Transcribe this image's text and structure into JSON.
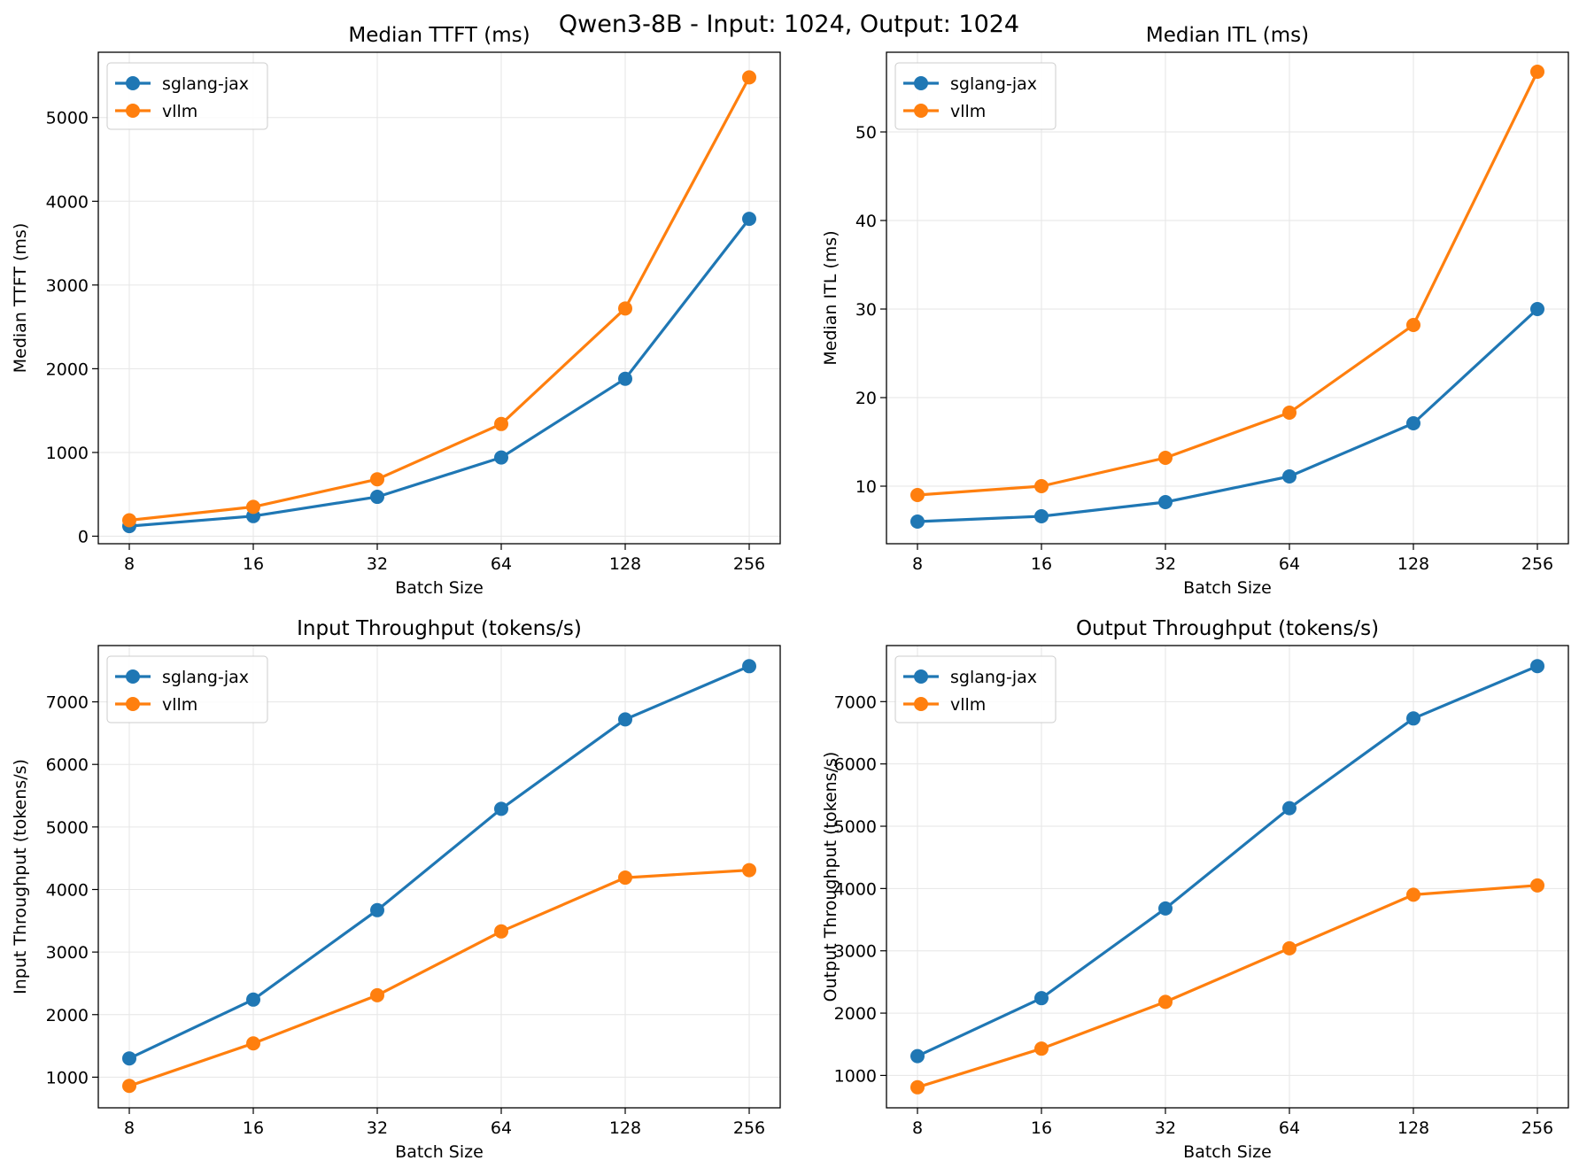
{
  "figure_title": "Qwen3-8B - Input: 1024, Output: 1024",
  "colors": {
    "sglang-jax": "#1f77b4",
    "vllm": "#ff7f0e",
    "grid": "#e6e6e6"
  },
  "chart_data": [
    {
      "type": "line",
      "title": "Median TTFT (ms)",
      "xlabel": "Batch Size",
      "ylabel": "Median TTFT (ms)",
      "x_scale": "log2",
      "x": [
        8,
        16,
        32,
        64,
        128,
        256
      ],
      "xticks": [
        "8",
        "16",
        "32",
        "64",
        "128",
        "256"
      ],
      "ylim": [
        -90,
        5780
      ],
      "yticks": [
        0,
        1000,
        2000,
        3000,
        4000,
        5000
      ],
      "grid": true,
      "legend": "top-left",
      "series": [
        {
          "name": "sglang-jax",
          "values": [
            120,
            240,
            470,
            940,
            1880,
            3790
          ]
        },
        {
          "name": "vllm",
          "values": [
            190,
            350,
            680,
            1340,
            2720,
            5480
          ]
        }
      ]
    },
    {
      "type": "line",
      "title": "Median ITL (ms)",
      "xlabel": "Batch Size",
      "ylabel": "Median ITL (ms)",
      "x_scale": "log2",
      "x": [
        8,
        16,
        32,
        64,
        128,
        256
      ],
      "xticks": [
        "8",
        "16",
        "32",
        "64",
        "128",
        "256"
      ],
      "ylim": [
        3.5,
        59
      ],
      "yticks": [
        10,
        20,
        30,
        40,
        50
      ],
      "grid": true,
      "legend": "top-left",
      "series": [
        {
          "name": "sglang-jax",
          "values": [
            6.0,
            6.6,
            8.2,
            11.1,
            17.1,
            30.0
          ]
        },
        {
          "name": "vllm",
          "values": [
            9.0,
            10.0,
            13.2,
            18.3,
            28.2,
            56.8
          ]
        }
      ]
    },
    {
      "type": "line",
      "title": "Input Throughput (tokens/s)",
      "xlabel": "Batch Size",
      "ylabel": "Input Throughput (tokens/s)",
      "x_scale": "log2",
      "x": [
        8,
        16,
        32,
        64,
        128,
        256
      ],
      "xticks": [
        "8",
        "16",
        "32",
        "64",
        "128",
        "256"
      ],
      "ylim": [
        510,
        7900
      ],
      "yticks": [
        1000,
        2000,
        3000,
        4000,
        5000,
        6000,
        7000
      ],
      "grid": true,
      "legend": "top-left",
      "series": [
        {
          "name": "sglang-jax",
          "values": [
            1300,
            2240,
            3670,
            5290,
            6720,
            7570
          ]
        },
        {
          "name": "vllm",
          "values": [
            860,
            1540,
            2310,
            3330,
            4190,
            4310
          ]
        }
      ]
    },
    {
      "type": "line",
      "title": "Output Throughput (tokens/s)",
      "xlabel": "Batch Size",
      "ylabel": "Output Throughput (tokens/s)",
      "x_scale": "log2",
      "x": [
        8,
        16,
        32,
        64,
        128,
        256
      ],
      "xticks": [
        "8",
        "16",
        "32",
        "64",
        "128",
        "256"
      ],
      "ylim": [
        480,
        7900
      ],
      "yticks": [
        1000,
        2000,
        3000,
        4000,
        5000,
        6000,
        7000
      ],
      "grid": true,
      "legend": "top-left",
      "series": [
        {
          "name": "sglang-jax",
          "values": [
            1310,
            2240,
            3680,
            5290,
            6730,
            7570
          ]
        },
        {
          "name": "vllm",
          "values": [
            810,
            1430,
            2180,
            3040,
            3900,
            4050
          ]
        }
      ]
    }
  ]
}
